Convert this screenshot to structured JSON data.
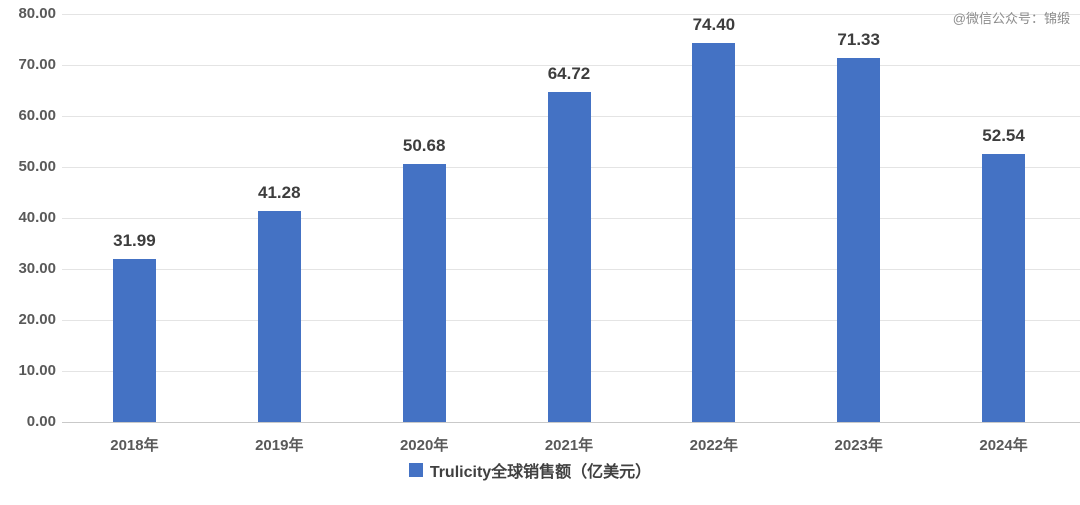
{
  "watermark": "@微信公众号：锦缎",
  "colors": {
    "bar": "#4472C4",
    "grid": "#e4e4e4",
    "baseline": "#c9c9c9",
    "axis_text": "#595959",
    "value_text": "#3d3d3d",
    "legend_text": "#404040",
    "watermark_text": "#8c8c8c",
    "background": "#ffffff"
  },
  "legend": {
    "label": "Trulicity全球销售额（亿美元）",
    "marker_color": "#4472C4"
  },
  "chart_data": {
    "type": "bar",
    "title": "",
    "xlabel": "",
    "ylabel": "",
    "categories": [
      "2018年",
      "2019年",
      "2020年",
      "2021年",
      "2022年",
      "2023年",
      "2024年"
    ],
    "values": [
      31.99,
      41.28,
      50.68,
      64.72,
      74.4,
      71.33,
      52.54
    ],
    "value_labels": [
      "31.99",
      "41.28",
      "50.68",
      "64.72",
      "74.40",
      "71.33",
      "52.54"
    ],
    "series_name": "Trulicity全球销售额（亿美元）",
    "ylim": [
      0,
      80
    ],
    "ytick_step": 10,
    "ytick_labels": [
      "0.00",
      "10.00",
      "20.00",
      "30.00",
      "40.00",
      "50.00",
      "60.00",
      "70.00",
      "80.00"
    ],
    "grid": true,
    "legend_position": "bottom"
  }
}
